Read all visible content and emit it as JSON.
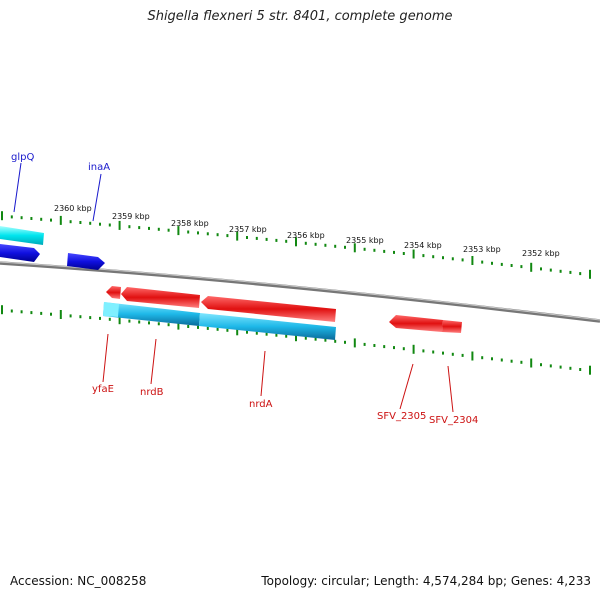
{
  "title": "Shigella flexneri 5 str. 8401, complete genome",
  "footer": {
    "accession_label": "Accession:",
    "accession": "NC_008258",
    "topology_label": "Topology:",
    "topology": "circular",
    "length_label": "Length:",
    "length": "4,574,284 bp",
    "genes_label": "Genes:",
    "genes": "4,233"
  },
  "colors": {
    "forward_gene": "#1010e0",
    "forward_gene_light": "#00e5ee",
    "reverse_gene": "#e01010",
    "reverse_gene_light": "#00aadd",
    "ticks": "#118811",
    "backbone": "#888888",
    "label_forward": "#1a1acc",
    "label_reverse": "#cc1111"
  },
  "scale_labels": [
    "2360 kbp",
    "2359 kbp",
    "2358 kbp",
    "2357 kbp",
    "2356 kbp",
    "2355 kbp",
    "2354 kbp",
    "2353 kbp",
    "2352 kbp"
  ],
  "genes_forward": [
    {
      "name": "glpQ"
    },
    {
      "name": "inaA"
    }
  ],
  "genes_reverse": [
    {
      "name": "yfaE"
    },
    {
      "name": "nrdB"
    },
    {
      "name": "nrdA"
    },
    {
      "name": "SFV_2305"
    },
    {
      "name": "SFV_2304"
    }
  ]
}
